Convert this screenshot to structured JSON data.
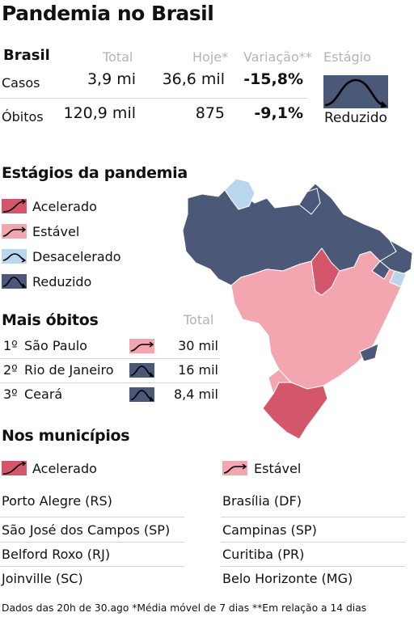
{
  "title": "Pandemia no Brasil",
  "summary": {
    "region_label": "Brasil",
    "headers": {
      "total": "Total",
      "today": "Hoje*",
      "variation": "Variação**",
      "stage": "Estágio"
    },
    "rows": [
      {
        "label": "Casos",
        "total": "3,9 mi",
        "today": "36,6 mil",
        "variation": "-15,8%"
      },
      {
        "label": "Óbitos",
        "total": "120,9 mil",
        "today": "875",
        "variation": "-9,1%"
      }
    ],
    "stage_value": "Reduzido"
  },
  "stages": {
    "title": "Estágios da pandemia",
    "items": [
      {
        "label": "Acelerado",
        "color": "#d4566a",
        "icon": "accelerating-curve-icon"
      },
      {
        "label": "Estável",
        "color": "#f4a6b0",
        "icon": "stable-curve-icon"
      },
      {
        "label": "Desacelerado",
        "color": "#b9d6ee",
        "icon": "decelerating-curve-icon"
      },
      {
        "label": "Reduzido",
        "color": "#4b5878",
        "icon": "reduced-curve-icon"
      }
    ]
  },
  "deaths": {
    "title": "Mais óbitos",
    "total_header": "Total",
    "rows": [
      {
        "rank": "1º",
        "state": "São Paulo",
        "stage": "Estável",
        "total": "30 mil"
      },
      {
        "rank": "2º",
        "state": "Rio de Janeiro",
        "stage": "Reduzido",
        "total": "16 mil"
      },
      {
        "rank": "3º",
        "state": "Ceará",
        "stage": "Reduzido",
        "total": "8,4 mil"
      }
    ]
  },
  "municipalities": {
    "title": "Nos municípios",
    "accelerated_label": "Acelerado",
    "stable_label": "Estável",
    "accelerated": [
      "Porto Alegre (RS)",
      "São José dos Campos (SP)",
      "Belford Roxo (RJ)",
      "Joinville (SC)"
    ],
    "stable": [
      "Brasília (DF)",
      "Campinas (SP)",
      "Curitiba (PR)",
      "Belo Horizonte (MG)"
    ]
  },
  "footer": "Dados das 20h de 30.ago *Média móvel de 7 dias **Em relação a 14 dias",
  "colors": {
    "accelerated": "#d4566a",
    "stable": "#f4a6b0",
    "decelerating": "#b9d6ee",
    "reduced": "#4b5878"
  },
  "chart_data": {
    "type": "table",
    "title": "Pandemia no Brasil",
    "columns": [
      "Total",
      "Hoje*",
      "Variação**",
      "Estágio"
    ],
    "rows": [
      {
        "name": "Casos",
        "values": [
          "3,9 mi",
          "36,6 mil",
          "-15,8%",
          "Reduzido"
        ]
      },
      {
        "name": "Óbitos",
        "values": [
          "120,9 mil",
          "875",
          "-9,1%",
          "Reduzido"
        ]
      }
    ]
  }
}
